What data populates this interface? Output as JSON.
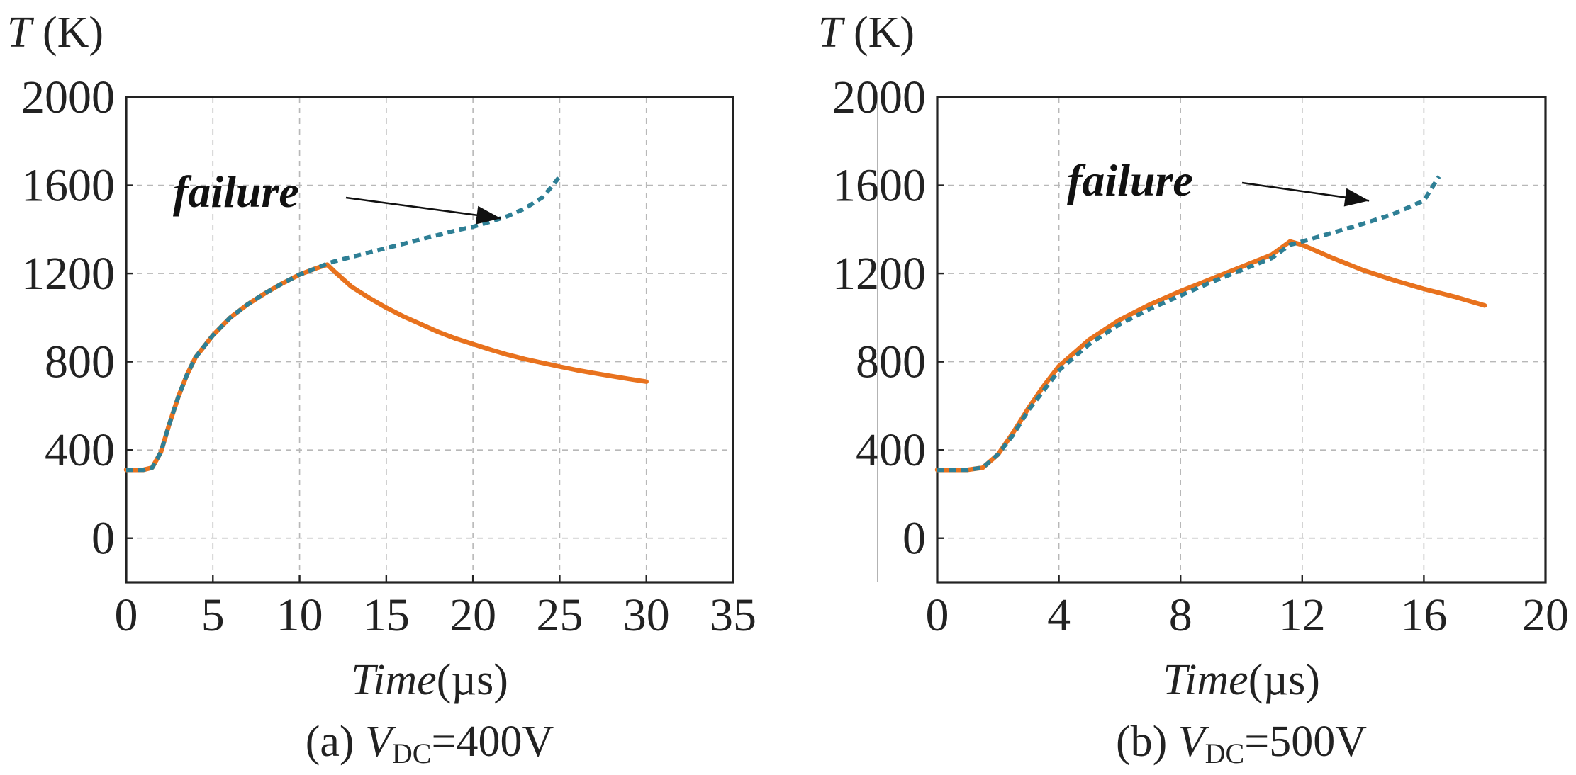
{
  "chart_data": [
    {
      "type": "line",
      "panel_id": "a",
      "caption": {
        "prefix": "(a) ",
        "var": "V",
        "sub": "DC",
        "suffix": "=400V"
      },
      "ylabel": {
        "var": "T",
        "unit": " (K)"
      },
      "xlabel": {
        "var": "Time",
        "unit": "(µs)"
      },
      "xlim": [
        0,
        35
      ],
      "ylim": [
        -200,
        2000
      ],
      "xticks": [
        0,
        5,
        10,
        15,
        20,
        25,
        30,
        35
      ],
      "yticks": [
        0,
        400,
        800,
        1200,
        1600,
        2000
      ],
      "grid": true,
      "annotation": {
        "text": "failure",
        "arrow_target": {
          "x": 21.6,
          "y": 1450
        }
      },
      "series": [
        {
          "color": "#2e7f95",
          "style": "dashed",
          "x": [
            0,
            1,
            1.5,
            2,
            2.5,
            3,
            3.5,
            4,
            5,
            6,
            7,
            8,
            9,
            10,
            11,
            11.6,
            12,
            13,
            14,
            15,
            16,
            17,
            18,
            19,
            20,
            21,
            22,
            23,
            24,
            24.5,
            25
          ],
          "y": [
            310,
            310,
            320,
            390,
            520,
            640,
            740,
            820,
            920,
            1000,
            1060,
            1110,
            1155,
            1195,
            1225,
            1245,
            1255,
            1275,
            1295,
            1315,
            1335,
            1355,
            1375,
            1395,
            1412,
            1435,
            1460,
            1495,
            1545,
            1590,
            1640
          ]
        },
        {
          "color": "#e8721e",
          "style": "solid",
          "x": [
            0,
            1,
            1.5,
            2,
            2.5,
            3,
            3.5,
            4,
            5,
            6,
            7,
            8,
            9,
            10,
            11,
            11.6,
            12,
            13,
            14,
            15,
            16,
            17,
            18,
            19,
            20,
            21,
            22,
            23,
            24,
            25,
            26,
            27,
            28,
            29,
            30
          ],
          "y": [
            310,
            310,
            320,
            390,
            520,
            640,
            740,
            820,
            920,
            1000,
            1060,
            1110,
            1155,
            1195,
            1225,
            1240,
            1210,
            1140,
            1090,
            1045,
            1005,
            970,
            935,
            905,
            880,
            855,
            832,
            812,
            795,
            778,
            762,
            748,
            735,
            722,
            710
          ]
        }
      ]
    },
    {
      "type": "line",
      "panel_id": "b",
      "caption": {
        "prefix": "(b) ",
        "var": "V",
        "sub": "DC",
        "suffix": "=500V"
      },
      "ylabel": {
        "var": "T",
        "unit": " (K)"
      },
      "xlabel": {
        "var": "Time",
        "unit": "(µs)"
      },
      "xlim": [
        0,
        20
      ],
      "ylim": [
        -200,
        2000
      ],
      "xticks": [
        0,
        4,
        8,
        12,
        16,
        20
      ],
      "yticks": [
        0,
        400,
        800,
        1200,
        1600,
        2000
      ],
      "grid": true,
      "annotation": {
        "text": "failure",
        "arrow_target": {
          "x": 14.2,
          "y": 1530
        }
      },
      "series": [
        {
          "color": "#2e7f95",
          "style": "dashed",
          "x": [
            0,
            1,
            1.5,
            2,
            2.5,
            3,
            3.5,
            4,
            5,
            6,
            7,
            8,
            9,
            10,
            11,
            11.6,
            12,
            13,
            14,
            15,
            16,
            16.5
          ],
          "y": [
            310,
            310,
            320,
            380,
            470,
            580,
            670,
            760,
            880,
            970,
            1040,
            1100,
            1160,
            1215,
            1270,
            1330,
            1345,
            1385,
            1425,
            1470,
            1530,
            1640
          ]
        },
        {
          "color": "#e8721e",
          "style": "solid",
          "x": [
            0,
            1,
            1.5,
            2,
            2.5,
            3,
            3.5,
            4,
            5,
            6,
            7,
            8,
            9,
            10,
            11,
            11.6,
            12,
            13,
            14,
            15,
            16,
            17,
            18
          ],
          "y": [
            310,
            310,
            320,
            380,
            480,
            590,
            690,
            780,
            900,
            990,
            1060,
            1120,
            1175,
            1230,
            1285,
            1345,
            1330,
            1270,
            1215,
            1170,
            1130,
            1095,
            1055
          ]
        }
      ]
    }
  ]
}
